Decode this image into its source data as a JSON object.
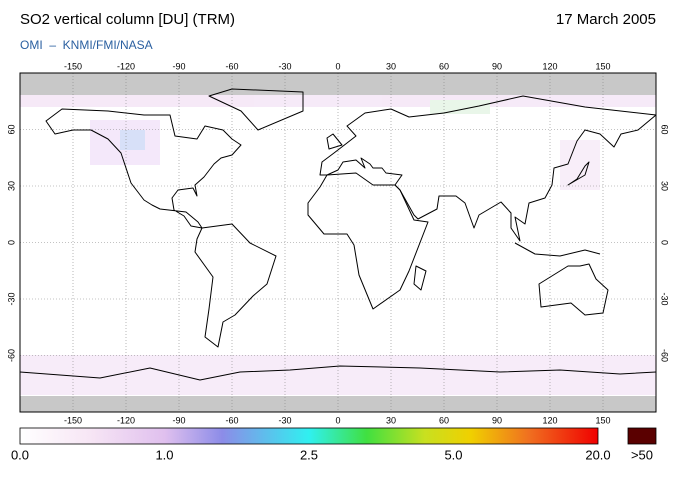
{
  "header": {
    "title": "SO2 vertical column [DU] (TRM)",
    "date": "17 March 2005",
    "credit": "OMI  –  KNMI/FMI/NASA"
  },
  "map": {
    "lon_ticks": [
      -150,
      -120,
      -90,
      -60,
      -30,
      0,
      30,
      60,
      90,
      120,
      150
    ],
    "lat_ticks": [
      60,
      30,
      0,
      -30,
      -60
    ]
  },
  "colorbar": {
    "labels": [
      "0.0",
      "1.0",
      "2.5",
      "5.0",
      "20.0"
    ],
    "overflow_label": ">50"
  }
}
